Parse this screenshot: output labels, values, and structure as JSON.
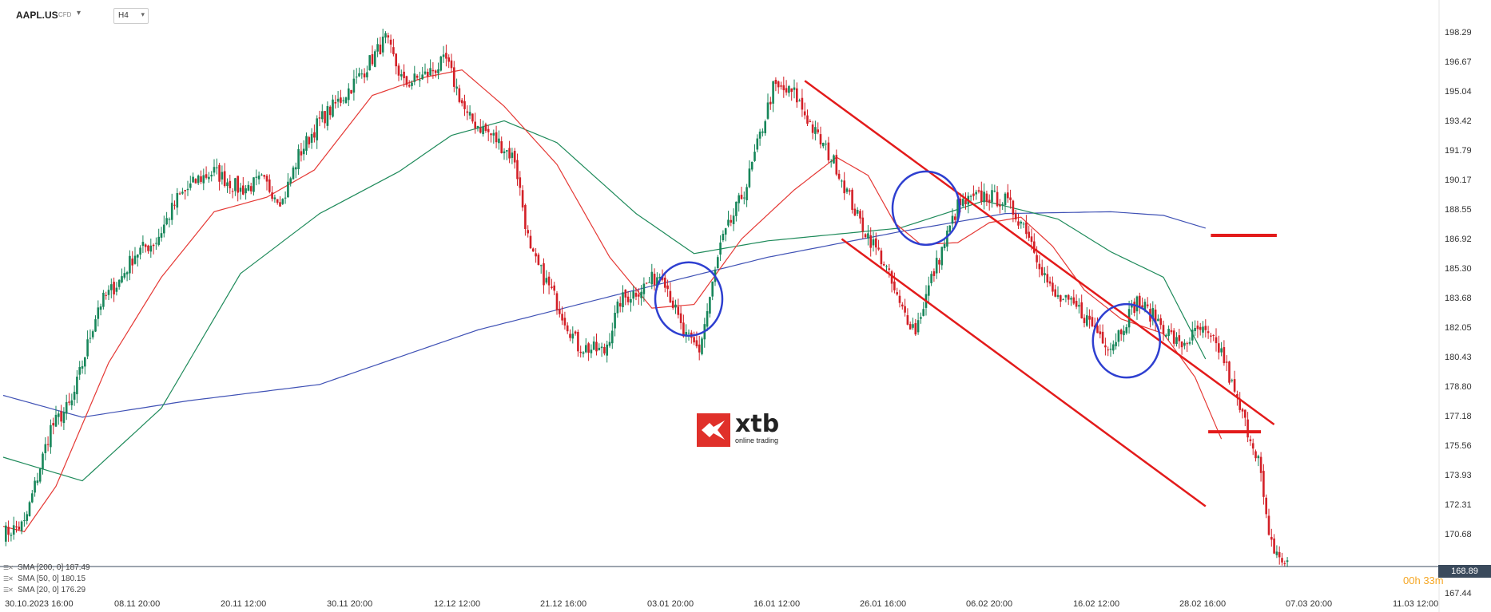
{
  "header": {
    "symbol": "AAPL.US",
    "symbol_type": "CFD",
    "timeframe": "H4"
  },
  "legend": [
    {
      "label": "SMA  [200,  0]  187.49",
      "color": "#3f51b5"
    },
    {
      "label": "SMA  [50,  0]  180.15",
      "color": "#1e8a5a"
    },
    {
      "label": "SMA  [20,  0]  176.29",
      "color": "#e53935"
    }
  ],
  "current_price": "168.89",
  "countdown": {
    "hours": "00h",
    "minutes": "33m"
  },
  "logo": {
    "text": "xtb",
    "sub": "online trading"
  },
  "chart_data": {
    "type": "candlestick",
    "symbol": "AAPL.US",
    "timeframe": "H4",
    "y_ticks": [
      "198.29",
      "196.67",
      "195.04",
      "193.42",
      "191.79",
      "190.17",
      "188.55",
      "186.92",
      "185.30",
      "183.68",
      "182.05",
      "180.43",
      "178.80",
      "177.18",
      "175.56",
      "173.93",
      "172.31",
      "170.68",
      "167.44"
    ],
    "ylim": [
      167.44,
      198.29
    ],
    "x_ticks": [
      "30.10.2023   16:00",
      "08.11   20:00",
      "20.11   12:00",
      "30.11   20:00",
      "12.12   12:00",
      "21.12   16:00",
      "03.01   20:00",
      "16.01   12:00",
      "26.01   16:00",
      "06.02   20:00",
      "16.02   12:00",
      "28.02   16:00",
      "07.03   20:00",
      "11.03   12:00"
    ],
    "waypoints": [
      [
        0,
        170.7
      ],
      [
        8,
        171.2
      ],
      [
        18,
        176.5
      ],
      [
        26,
        177.9
      ],
      [
        36,
        183.2
      ],
      [
        44,
        184.6
      ],
      [
        50,
        186.1
      ],
      [
        58,
        186.8
      ],
      [
        66,
        189.1
      ],
      [
        74,
        190.2
      ],
      [
        80,
        190.6
      ],
      [
        90,
        189.6
      ],
      [
        98,
        190.1
      ],
      [
        106,
        189.0
      ],
      [
        112,
        191.5
      ],
      [
        120,
        193.4
      ],
      [
        128,
        194.6
      ],
      [
        136,
        196.0
      ],
      [
        145,
        197.9
      ],
      [
        152,
        195.4
      ],
      [
        160,
        195.9
      ],
      [
        168,
        196.7
      ],
      [
        176,
        193.6
      ],
      [
        186,
        192.5
      ],
      [
        194,
        191.3
      ],
      [
        200,
        186.1
      ],
      [
        208,
        184.0
      ],
      [
        218,
        181.0
      ],
      [
        228,
        180.7
      ],
      [
        234,
        183.5
      ],
      [
        242,
        184.2
      ],
      [
        250,
        185.1
      ],
      [
        258,
        181.6
      ],
      [
        264,
        180.8
      ],
      [
        272,
        186.5
      ],
      [
        282,
        189.9
      ],
      [
        292,
        195.2
      ],
      [
        300,
        194.9
      ],
      [
        308,
        192.7
      ],
      [
        316,
        190.9
      ],
      [
        324,
        188.1
      ],
      [
        334,
        185.6
      ],
      [
        340,
        183.2
      ],
      [
        346,
        181.9
      ],
      [
        352,
        184.7
      ],
      [
        362,
        188.7
      ],
      [
        372,
        189.3
      ],
      [
        380,
        189.0
      ],
      [
        388,
        187.5
      ],
      [
        398,
        183.8
      ],
      [
        408,
        183.0
      ],
      [
        420,
        181.0
      ],
      [
        430,
        183.5
      ],
      [
        440,
        182.1
      ],
      [
        446,
        181.0
      ],
      [
        454,
        181.9
      ],
      [
        462,
        180.7
      ],
      [
        468,
        177.9
      ],
      [
        476,
        174.9
      ],
      [
        480,
        170.3
      ],
      [
        486,
        169.0
      ]
    ],
    "sma_series": [
      {
        "label": "SMA (200, 0)",
        "color": "#3f51b5",
        "last": 187.49,
        "points": [
          [
            0,
            178.3
          ],
          [
            30,
            177.1
          ],
          [
            70,
            178.0
          ],
          [
            120,
            178.9
          ],
          [
            180,
            181.9
          ],
          [
            240,
            184.1
          ],
          [
            290,
            185.9
          ],
          [
            340,
            187.3
          ],
          [
            380,
            188.3
          ],
          [
            420,
            188.4
          ],
          [
            440,
            188.2
          ],
          [
            456,
            187.5
          ]
        ]
      },
      {
        "label": "SMA (50, 0)",
        "color": "#1e8a5a",
        "last": 180.15,
        "points": [
          [
            0,
            174.9
          ],
          [
            30,
            173.6
          ],
          [
            60,
            177.6
          ],
          [
            90,
            185.0
          ],
          [
            120,
            188.3
          ],
          [
            150,
            190.6
          ],
          [
            170,
            192.6
          ],
          [
            190,
            193.4
          ],
          [
            210,
            192.2
          ],
          [
            240,
            188.3
          ],
          [
            262,
            186.1
          ],
          [
            290,
            186.8
          ],
          [
            340,
            187.5
          ],
          [
            372,
            189.0
          ],
          [
            400,
            188.0
          ],
          [
            420,
            186.2
          ],
          [
            440,
            184.8
          ],
          [
            456,
            180.3
          ]
        ]
      },
      {
        "label": "SMA (20, 0)",
        "color": "#e53935",
        "last": 176.29,
        "points": [
          [
            0,
            171.1
          ],
          [
            8,
            170.8
          ],
          [
            20,
            173.3
          ],
          [
            40,
            180.1
          ],
          [
            60,
            184.8
          ],
          [
            80,
            188.4
          ],
          [
            100,
            189.2
          ],
          [
            118,
            190.7
          ],
          [
            140,
            194.8
          ],
          [
            160,
            195.8
          ],
          [
            174,
            196.2
          ],
          [
            190,
            194.2
          ],
          [
            210,
            191.0
          ],
          [
            230,
            185.9
          ],
          [
            246,
            183.1
          ],
          [
            262,
            183.3
          ],
          [
            280,
            186.9
          ],
          [
            300,
            189.6
          ],
          [
            316,
            191.4
          ],
          [
            328,
            190.4
          ],
          [
            338,
            187.8
          ],
          [
            348,
            186.6
          ],
          [
            362,
            186.7
          ],
          [
            374,
            187.8
          ],
          [
            386,
            188.1
          ],
          [
            398,
            186.5
          ],
          [
            410,
            184.1
          ],
          [
            424,
            182.5
          ],
          [
            440,
            181.7
          ],
          [
            452,
            179.3
          ],
          [
            462,
            175.9
          ]
        ]
      }
    ],
    "annotations": {
      "channel_upper": [
        [
          304,
          195.6
        ],
        [
          482,
          176.7
        ]
      ],
      "channel_lower": [
        [
          318,
          186.9
        ],
        [
          456,
          172.2
        ]
      ],
      "circles": [
        [
          260,
          183.6
        ],
        [
          350,
          188.6
        ],
        [
          426,
          181.3
        ]
      ],
      "h_lines": [
        [
          458,
          483,
          187.1
        ],
        [
          457,
          477,
          176.3
        ]
      ]
    }
  }
}
